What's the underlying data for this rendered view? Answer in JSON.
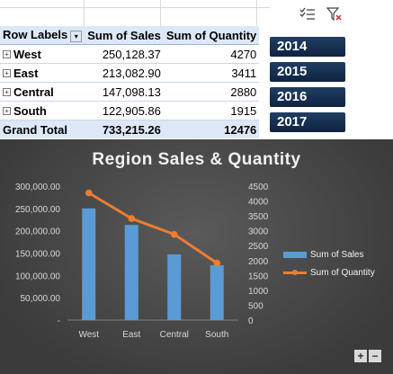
{
  "pivot": {
    "headers": [
      "Row Labels",
      "Sum of Sales",
      "Sum of Quantity"
    ],
    "rows": [
      {
        "label": "West",
        "sales": "250,128.37",
        "qty": "4270"
      },
      {
        "label": "East",
        "sales": "213,082.90",
        "qty": "3411"
      },
      {
        "label": "Central",
        "sales": "147,098.13",
        "qty": "2880"
      },
      {
        "label": "South",
        "sales": "122,905.86",
        "qty": "1915"
      }
    ],
    "total": {
      "label": "Grand Total",
      "sales": "733,215.26",
      "qty": "12476"
    }
  },
  "slicer": {
    "icons": [
      "multi-select-icon",
      "clear-filter-icon"
    ],
    "years": [
      "2014",
      "2015",
      "2016",
      "2017"
    ]
  },
  "zoom": {
    "plus": "+",
    "minus": "−"
  },
  "chart_data": {
    "type": "bar",
    "title": "Region Sales & Quantity",
    "categories": [
      "West",
      "East",
      "Central",
      "South"
    ],
    "series": [
      {
        "name": "Sum of Sales",
        "type": "bar",
        "axis": "primary",
        "values": [
          250128.37,
          213082.9,
          147098.13,
          122905.86
        ]
      },
      {
        "name": "Sum of Quantity",
        "type": "line",
        "axis": "secondary",
        "values": [
          4270,
          3411,
          2880,
          1915
        ]
      }
    ],
    "y_primary": {
      "min": 0,
      "max": 300000,
      "step": 50000,
      "ticks": [
        "-",
        "50,000.00",
        "100,000.00",
        "150,000.00",
        "200,000.00",
        "250,000.00",
        "300,000.00"
      ]
    },
    "y_secondary": {
      "min": 0,
      "max": 4500,
      "step": 500,
      "ticks": [
        "0",
        "500",
        "1000",
        "1500",
        "2000",
        "2500",
        "3000",
        "3500",
        "4000",
        "4500"
      ]
    },
    "legend_position": "right",
    "grid": false,
    "colors": {
      "bar": "#5b9bd5",
      "line": "#ed7d31",
      "text": "#d9d9d9"
    }
  }
}
